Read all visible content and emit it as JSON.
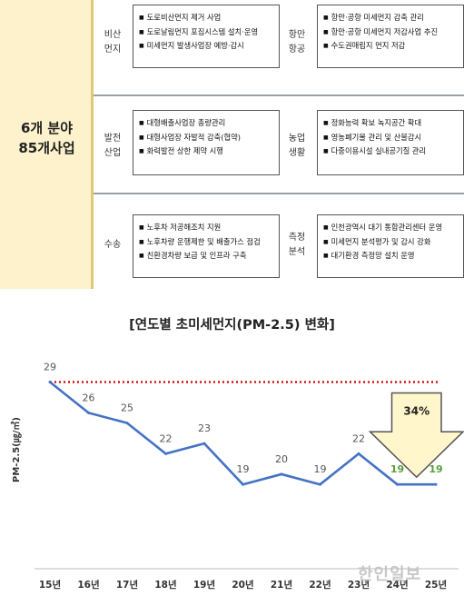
{
  "table": {
    "left_title": [
      "6개 분야",
      "85개사업"
    ],
    "rows": [
      {
        "left_category": [
          "비산",
          "먼지"
        ],
        "left_items": [
          "도로비산먼지 제거 사업",
          "도로날림먼지 포집시스템 설치·운영",
          "미세먼지 발생사업장 예방·감시"
        ],
        "right_category": [
          "항만",
          "항공"
        ],
        "right_items": [
          "항만·공항 미세먼지 감축 관리",
          "항만·공항 미세먼지 저감사업 추진",
          "수도권매립지 먼지 저감"
        ]
      },
      {
        "left_category": [
          "발전",
          "산업"
        ],
        "left_items": [
          "대형배출사업장 총량관리",
          "대형사업장 자발적 감축(협약)",
          "화력발전 상한 제약 시행"
        ],
        "right_category": [
          "농업",
          "생활"
        ],
        "right_items": [
          "정화능력 확보 녹지공간 확대",
          "영농폐기물 관리 및 산불감시",
          "다중이용시설 실내공기질 관리"
        ]
      },
      {
        "left_category": [
          "수송"
        ],
        "left_items": [
          "노후차 저공해조치 지원",
          "노후차량 운행제한 및 배출가스 점검",
          "친환경차량 보급 및 인프라 구축"
        ],
        "right_category": [
          "측정",
          "분석"
        ],
        "right_items": [
          "인천광역시 대기 통합관리센터 운영",
          "미세먼지 분석평가 및 감시 강화",
          "대기환경 측정망 설치 운영"
        ]
      }
    ]
  },
  "chart_data": {
    "type": "line",
    "title": "[연도별 초미세먼지(PM-2.5) 변화]",
    "ylabel": "PM-2.5(㎍/㎥)",
    "categories": [
      "15년",
      "16년",
      "17년",
      "18년",
      "19년",
      "20년",
      "21년",
      "22년",
      "23년",
      "24년",
      "25년"
    ],
    "series": [
      {
        "values": [
          29,
          26,
          25,
          22,
          23,
          19,
          20,
          19,
          22,
          19,
          19
        ],
        "color": "#4472c4"
      }
    ],
    "value_labels": [
      "29",
      "26",
      "25",
      "22",
      "23",
      "19",
      "20",
      "19",
      "22",
      "19",
      "19"
    ],
    "highlight_label_color": "#5a9e3a",
    "highlight_indices": [
      9,
      10
    ],
    "reference_line": {
      "value": 29,
      "color": "#cc0000",
      "style": "dotted"
    },
    "arrow_annotation": {
      "label": "34%",
      "fill": "#fff6cc",
      "stroke": "#555555"
    },
    "ylim": [
      16,
      31
    ],
    "grid": false
  },
  "watermark": "한인일보"
}
